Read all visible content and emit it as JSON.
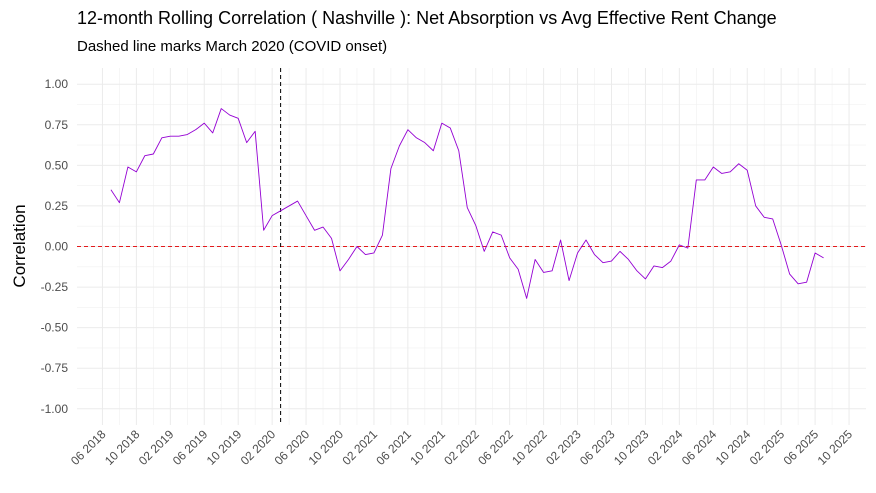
{
  "chart_data": {
    "type": "line",
    "title": "12-month Rolling Correlation ( Nashville ): Net Absorption vs Avg Effective Rent Change",
    "subtitle": "Dashed line marks March 2020 (COVID onset)",
    "xlabel": "",
    "ylabel": "Correlation",
    "ylim": [
      -1.1,
      1.1
    ],
    "y_ticks": [
      "1.00",
      "0.75",
      "0.50",
      "0.25",
      "0.00",
      "-0.25",
      "-0.50",
      "-0.75",
      "-1.00"
    ],
    "y_tick_values": [
      1.0,
      0.75,
      0.5,
      0.25,
      0.0,
      -0.25,
      -0.5,
      -0.75,
      -1.0
    ],
    "x_ticks": [
      "06 2018",
      "10 2018",
      "02 2019",
      "06 2019",
      "10 2019",
      "02 2020",
      "06 2020",
      "10 2020",
      "02 2021",
      "06 2021",
      "10 2021",
      "02 2022",
      "06 2022",
      "10 2022",
      "02 2023",
      "06 2023",
      "10 2023",
      "02 2024",
      "06 2024",
      "10 2024",
      "02 2025",
      "06 2025",
      "10 2025"
    ],
    "x_tick_values": [
      "2018-06",
      "2018-10",
      "2019-02",
      "2019-06",
      "2019-10",
      "2020-02",
      "2020-06",
      "2020-10",
      "2021-02",
      "2021-06",
      "2021-10",
      "2022-02",
      "2022-06",
      "2022-10",
      "2023-02",
      "2023-06",
      "2023-10",
      "2024-02",
      "2024-06",
      "2024-10",
      "2025-02",
      "2025-06",
      "2025-10"
    ],
    "x_range": [
      "2018-03",
      "2025-12"
    ],
    "vline": {
      "x": "2020-03",
      "style": "dashed",
      "color": "#000000"
    },
    "hline": {
      "y": 0,
      "style": "dashed",
      "color": "#e31a1c"
    },
    "grid": true,
    "series": [
      {
        "color": "#9400d3",
        "x": [
          "2018-07",
          "2018-08",
          "2018-09",
          "2018-10",
          "2018-11",
          "2018-12",
          "2019-01",
          "2019-02",
          "2019-03",
          "2019-04",
          "2019-05",
          "2019-06",
          "2019-07",
          "2019-08",
          "2019-09",
          "2019-10",
          "2019-11",
          "2019-12",
          "2020-01",
          "2020-02",
          "2020-03",
          "2020-04",
          "2020-05",
          "2020-06",
          "2020-07",
          "2020-08",
          "2020-09",
          "2020-10",
          "2020-11",
          "2020-12",
          "2021-01",
          "2021-02",
          "2021-03",
          "2021-04",
          "2021-05",
          "2021-06",
          "2021-07",
          "2021-08",
          "2021-09",
          "2021-10",
          "2021-11",
          "2021-12",
          "2022-01",
          "2022-02",
          "2022-03",
          "2022-04",
          "2022-05",
          "2022-06",
          "2022-07",
          "2022-08",
          "2022-09",
          "2022-10",
          "2022-11",
          "2022-12",
          "2023-01",
          "2023-02",
          "2023-03",
          "2023-04",
          "2023-05",
          "2023-06",
          "2023-07",
          "2023-08",
          "2023-09",
          "2023-10",
          "2023-11",
          "2023-12",
          "2024-01",
          "2024-02",
          "2024-03",
          "2024-04",
          "2024-05",
          "2024-06",
          "2024-07",
          "2024-08",
          "2024-09",
          "2024-10",
          "2024-11",
          "2024-12",
          "2025-01",
          "2025-02",
          "2025-03",
          "2025-04",
          "2025-05",
          "2025-06",
          "2025-07"
        ],
        "y": [
          0.35,
          0.27,
          0.49,
          0.46,
          0.56,
          0.57,
          0.67,
          0.68,
          0.68,
          0.69,
          0.72,
          0.76,
          0.7,
          0.85,
          0.81,
          0.79,
          0.64,
          0.71,
          0.1,
          0.19,
          0.22,
          0.25,
          0.28,
          0.19,
          0.1,
          0.12,
          0.05,
          -0.15,
          -0.08,
          0.0,
          -0.05,
          -0.04,
          0.07,
          0.48,
          0.62,
          0.72,
          0.67,
          0.64,
          0.59,
          0.76,
          0.73,
          0.59,
          0.24,
          0.13,
          -0.03,
          0.09,
          0.07,
          -0.07,
          -0.14,
          -0.32,
          -0.08,
          -0.16,
          -0.15,
          0.04,
          -0.21,
          -0.04,
          0.04,
          -0.05,
          -0.1,
          -0.09,
          -0.03,
          -0.08,
          -0.15,
          -0.2,
          -0.12,
          -0.13,
          -0.09,
          0.01,
          -0.01,
          0.41,
          0.41,
          0.49,
          0.45,
          0.46,
          0.51,
          0.47,
          0.25,
          0.18,
          0.17,
          0.01,
          -0.17,
          -0.23,
          -0.22,
          -0.04,
          -0.07
        ]
      }
    ]
  }
}
